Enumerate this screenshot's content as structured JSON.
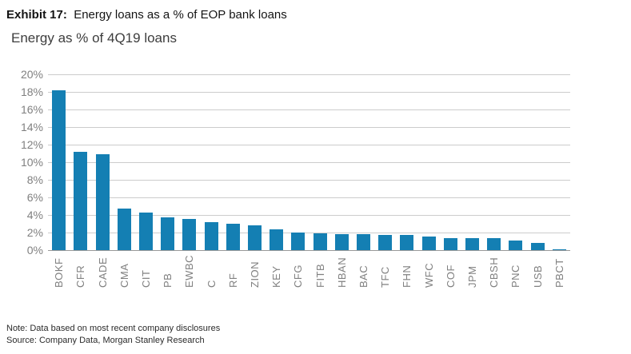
{
  "header": {
    "exhibit_label": "Exhibit 17:",
    "exhibit_title": "Energy loans as a % of EOP bank loans",
    "chart_subtitle": "Energy as % of 4Q19 loans"
  },
  "footer": {
    "note": "Note: Data based on most recent company disclosures",
    "source": "Source: Company Data, Morgan Stanley Research"
  },
  "colors": {
    "bar": "#147fb3",
    "gridline": "#cccccc",
    "axis_line": "#999999",
    "tick_label": "#808080"
  },
  "chart_data": {
    "type": "bar",
    "title": "Energy as % of 4Q19 loans",
    "categories": [
      "BOKF",
      "CFR",
      "CADE",
      "CMA",
      "CIT",
      "PB",
      "EWBC",
      "C",
      "RF",
      "ZION",
      "KEY",
      "CFG",
      "FITB",
      "HBAN",
      "BAC",
      "TFC",
      "FHN",
      "WFC",
      "COF",
      "JPM",
      "CBSH",
      "PNC",
      "USB",
      "PBCT"
    ],
    "values": [
      18.2,
      11.2,
      10.9,
      4.7,
      4.3,
      3.7,
      3.5,
      3.2,
      3.0,
      2.8,
      2.4,
      2.0,
      1.9,
      1.8,
      1.8,
      1.7,
      1.7,
      1.5,
      1.4,
      1.4,
      1.4,
      1.1,
      0.8,
      0.1
    ],
    "xlabel": "",
    "ylabel": "",
    "ylim": [
      0,
      20
    ],
    "ytick_step": 2,
    "ytick_labels": [
      "0%",
      "2%",
      "4%",
      "6%",
      "8%",
      "10%",
      "12%",
      "14%",
      "16%",
      "18%",
      "20%"
    ],
    "grid": "horizontal",
    "legend": "none",
    "bar_color": "#147fb3",
    "value_unit": "percent"
  }
}
